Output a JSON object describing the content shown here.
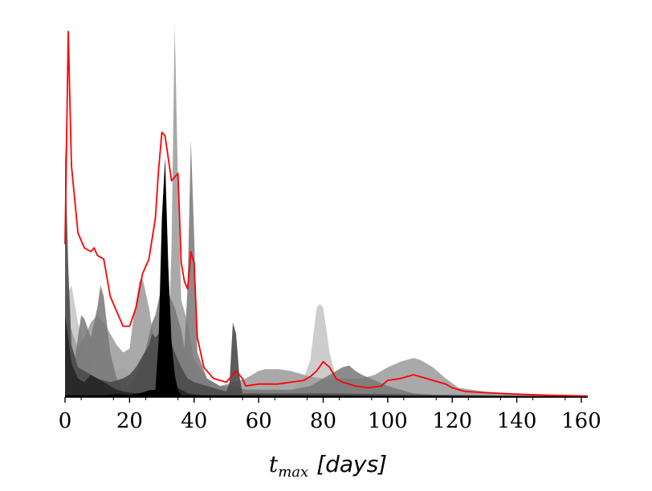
{
  "chart_data": {
    "type": "area",
    "xlabel": {
      "symbol": "t",
      "subscript": "max",
      "unit": "[days]"
    },
    "xlim": [
      0,
      162
    ],
    "ylim": [
      0,
      1
    ],
    "x_ticks": [
      0,
      20,
      40,
      60,
      80,
      100,
      120,
      140,
      160
    ],
    "x_tick_labels": [
      "0",
      "20",
      "40",
      "60",
      "80",
      "100",
      "120",
      "140",
      "160"
    ],
    "y_axis_visible": false,
    "grid": false,
    "series": [
      {
        "color": "#c8c8c8",
        "opacity": 0.9,
        "points": [
          [
            0,
            0.26
          ],
          [
            2,
            0.3
          ],
          [
            4,
            0.2
          ],
          [
            6,
            0.14
          ],
          [
            8,
            0.09
          ],
          [
            10,
            0.06
          ],
          [
            12,
            0.05
          ],
          [
            14,
            0.06
          ],
          [
            16,
            0.07
          ],
          [
            18,
            0.08
          ],
          [
            20,
            0.07
          ],
          [
            22,
            0.06
          ],
          [
            24,
            0.05
          ],
          [
            26,
            0.04
          ],
          [
            28,
            0.03
          ],
          [
            30,
            0.03
          ],
          [
            32,
            0.08
          ],
          [
            34,
            0.18
          ],
          [
            36,
            0.16
          ],
          [
            38,
            0.12
          ],
          [
            40,
            0.08
          ],
          [
            42,
            0.04
          ],
          [
            45,
            0.01
          ],
          [
            60,
            0.01
          ],
          [
            70,
            0.02
          ],
          [
            74,
            0.05
          ],
          [
            76,
            0.1
          ],
          [
            78,
            0.24
          ],
          [
            79,
            0.25
          ],
          [
            80,
            0.24
          ],
          [
            82,
            0.12
          ],
          [
            84,
            0.05
          ],
          [
            86,
            0.02
          ],
          [
            90,
            0.01
          ],
          [
            100,
            0.005
          ],
          [
            120,
            0.005
          ],
          [
            162,
            0.002
          ]
        ]
      },
      {
        "color": "#a0a0a0",
        "opacity": 0.9,
        "points": [
          [
            0,
            0.22
          ],
          [
            2,
            0.18
          ],
          [
            4,
            0.13
          ],
          [
            6,
            0.16
          ],
          [
            8,
            0.2
          ],
          [
            10,
            0.22
          ],
          [
            12,
            0.2
          ],
          [
            14,
            0.17
          ],
          [
            16,
            0.14
          ],
          [
            18,
            0.12
          ],
          [
            20,
            0.13
          ],
          [
            21,
            0.2
          ],
          [
            23,
            0.31
          ],
          [
            24,
            0.32
          ],
          [
            26,
            0.24
          ],
          [
            28,
            0.13
          ],
          [
            30,
            0.1
          ],
          [
            32,
            0.12
          ],
          [
            33,
            0.4
          ],
          [
            34,
            1.0
          ],
          [
            35,
            0.58
          ],
          [
            36,
            0.26
          ],
          [
            38,
            0.2
          ],
          [
            40,
            0.1
          ],
          [
            44,
            0.05
          ],
          [
            48,
            0.03
          ],
          [
            52,
            0.04
          ],
          [
            56,
            0.05
          ],
          [
            58,
            0.06
          ],
          [
            60,
            0.07
          ],
          [
            62,
            0.075
          ],
          [
            66,
            0.075
          ],
          [
            70,
            0.07
          ],
          [
            72,
            0.065
          ],
          [
            76,
            0.055
          ],
          [
            80,
            0.05
          ],
          [
            84,
            0.05
          ],
          [
            88,
            0.05
          ],
          [
            92,
            0.05
          ],
          [
            96,
            0.06
          ],
          [
            100,
            0.08
          ],
          [
            104,
            0.095
          ],
          [
            108,
            0.105
          ],
          [
            110,
            0.1
          ],
          [
            114,
            0.08
          ],
          [
            118,
            0.05
          ],
          [
            122,
            0.025
          ],
          [
            130,
            0.015
          ],
          [
            140,
            0.008
          ],
          [
            150,
            0.005
          ],
          [
            162,
            0.002
          ]
        ]
      },
      {
        "color": "#787878",
        "opacity": 0.85,
        "points": [
          [
            0,
            0.17
          ],
          [
            1,
            0.15
          ],
          [
            3,
            0.1
          ],
          [
            5,
            0.22
          ],
          [
            6,
            0.21
          ],
          [
            8,
            0.16
          ],
          [
            10,
            0.24
          ],
          [
            11,
            0.3
          ],
          [
            12,
            0.27
          ],
          [
            14,
            0.12
          ],
          [
            16,
            0.05
          ],
          [
            18,
            0.02
          ],
          [
            20,
            0.03
          ],
          [
            22,
            0.06
          ],
          [
            24,
            0.1
          ],
          [
            25,
            0.13
          ],
          [
            27,
            0.2
          ],
          [
            28,
            0.22
          ],
          [
            30,
            0.3
          ],
          [
            32,
            0.28
          ],
          [
            34,
            0.24
          ],
          [
            36,
            0.18
          ],
          [
            37,
            0.13
          ],
          [
            38,
            0.3
          ],
          [
            39,
            0.69
          ],
          [
            40,
            0.44
          ],
          [
            41,
            0.12
          ],
          [
            44,
            0.05
          ],
          [
            48,
            0.03
          ],
          [
            52,
            0.03
          ],
          [
            56,
            0.02
          ],
          [
            62,
            0.02
          ],
          [
            70,
            0.02
          ],
          [
            76,
            0.03
          ],
          [
            80,
            0.05
          ],
          [
            84,
            0.07
          ],
          [
            86,
            0.08
          ],
          [
            88,
            0.085
          ],
          [
            90,
            0.07
          ],
          [
            92,
            0.06
          ],
          [
            96,
            0.045
          ],
          [
            100,
            0.03
          ],
          [
            104,
            0.02
          ],
          [
            108,
            0.01
          ],
          [
            116,
            0.005
          ],
          [
            162,
            0.002
          ]
        ]
      },
      {
        "color": "#4a4a4a",
        "opacity": 0.9,
        "points": [
          [
            0,
            0.68
          ],
          [
            1,
            0.35
          ],
          [
            2,
            0.14
          ],
          [
            4,
            0.08
          ],
          [
            6,
            0.07
          ],
          [
            8,
            0.06
          ],
          [
            10,
            0.05
          ],
          [
            14,
            0.04
          ],
          [
            18,
            0.05
          ],
          [
            20,
            0.06
          ],
          [
            22,
            0.08
          ],
          [
            24,
            0.11
          ],
          [
            26,
            0.14
          ],
          [
            27,
            0.17
          ],
          [
            28,
            0.16
          ],
          [
            30,
            0.18
          ],
          [
            31,
            0.2
          ],
          [
            32,
            0.17
          ],
          [
            34,
            0.12
          ],
          [
            36,
            0.08
          ],
          [
            38,
            0.05
          ],
          [
            40,
            0.04
          ],
          [
            44,
            0.03
          ],
          [
            48,
            0.02
          ],
          [
            50,
            0.015
          ],
          [
            51,
            0.04
          ],
          [
            52,
            0.2
          ],
          [
            53,
            0.17
          ],
          [
            54,
            0.06
          ],
          [
            55,
            0.01
          ],
          [
            60,
            0.01
          ],
          [
            70,
            0.01
          ],
          [
            80,
            0.01
          ],
          [
            162,
            0.002
          ]
        ]
      },
      {
        "color": "#222222",
        "opacity": 0.85,
        "points": [
          [
            0,
            0.22
          ],
          [
            1,
            0.16
          ],
          [
            2,
            0.09
          ],
          [
            4,
            0.05
          ],
          [
            6,
            0.04
          ],
          [
            8,
            0.06
          ],
          [
            10,
            0.05
          ],
          [
            12,
            0.04
          ],
          [
            14,
            0.03
          ],
          [
            16,
            0.02
          ],
          [
            18,
            0.015
          ],
          [
            22,
            0.01
          ],
          [
            26,
            0.01
          ],
          [
            28,
            0.015
          ],
          [
            30,
            0.03
          ],
          [
            31,
            0.05
          ],
          [
            32,
            0.04
          ],
          [
            34,
            0.03
          ],
          [
            36,
            0.02
          ],
          [
            38,
            0.01
          ],
          [
            42,
            0.005
          ],
          [
            162,
            0.002
          ]
        ]
      },
      {
        "color": "#000000",
        "opacity": 1.0,
        "points": [
          [
            0,
            0.005
          ],
          [
            12,
            0.005
          ],
          [
            16,
            0.008
          ],
          [
            20,
            0.006
          ],
          [
            24,
            0.012
          ],
          [
            26,
            0.018
          ],
          [
            28,
            0.02
          ],
          [
            29,
            0.15
          ],
          [
            30,
            0.48
          ],
          [
            31,
            0.64
          ],
          [
            32,
            0.35
          ],
          [
            33,
            0.15
          ],
          [
            34,
            0.06
          ],
          [
            35,
            0.02
          ],
          [
            36,
            0.005
          ],
          [
            162,
            0.002
          ]
        ]
      },
      {
        "color": "#ff0000",
        "line": true,
        "points": [
          [
            0,
            0.41
          ],
          [
            1,
            0.98
          ],
          [
            2,
            0.62
          ],
          [
            4,
            0.44
          ],
          [
            6,
            0.4
          ],
          [
            8,
            0.39
          ],
          [
            9,
            0.4
          ],
          [
            10,
            0.38
          ],
          [
            12,
            0.37
          ],
          [
            14,
            0.27
          ],
          [
            16,
            0.23
          ],
          [
            18,
            0.19
          ],
          [
            20,
            0.19
          ],
          [
            22,
            0.24
          ],
          [
            24,
            0.33
          ],
          [
            26,
            0.37
          ],
          [
            28,
            0.48
          ],
          [
            29,
            0.61
          ],
          [
            30,
            0.71
          ],
          [
            31,
            0.7
          ],
          [
            33,
            0.58
          ],
          [
            35,
            0.6
          ],
          [
            36,
            0.36
          ],
          [
            37,
            0.31
          ],
          [
            38,
            0.29
          ],
          [
            39,
            0.39
          ],
          [
            40,
            0.36
          ],
          [
            41,
            0.16
          ],
          [
            43,
            0.08
          ],
          [
            46,
            0.05
          ],
          [
            50,
            0.04
          ],
          [
            52,
            0.06
          ],
          [
            53,
            0.07
          ],
          [
            55,
            0.05
          ],
          [
            56,
            0.03
          ],
          [
            60,
            0.035
          ],
          [
            66,
            0.035
          ],
          [
            70,
            0.04
          ],
          [
            74,
            0.045
          ],
          [
            76,
            0.055
          ],
          [
            78,
            0.07
          ],
          [
            80,
            0.095
          ],
          [
            82,
            0.08
          ],
          [
            84,
            0.05
          ],
          [
            86,
            0.04
          ],
          [
            90,
            0.03
          ],
          [
            94,
            0.025
          ],
          [
            98,
            0.03
          ],
          [
            100,
            0.045
          ],
          [
            104,
            0.05
          ],
          [
            108,
            0.06
          ],
          [
            110,
            0.055
          ],
          [
            114,
            0.045
          ],
          [
            118,
            0.035
          ],
          [
            120,
            0.025
          ],
          [
            124,
            0.015
          ],
          [
            130,
            0.012
          ],
          [
            140,
            0.008
          ],
          [
            150,
            0.005
          ],
          [
            162,
            0.003
          ]
        ]
      }
    ]
  }
}
